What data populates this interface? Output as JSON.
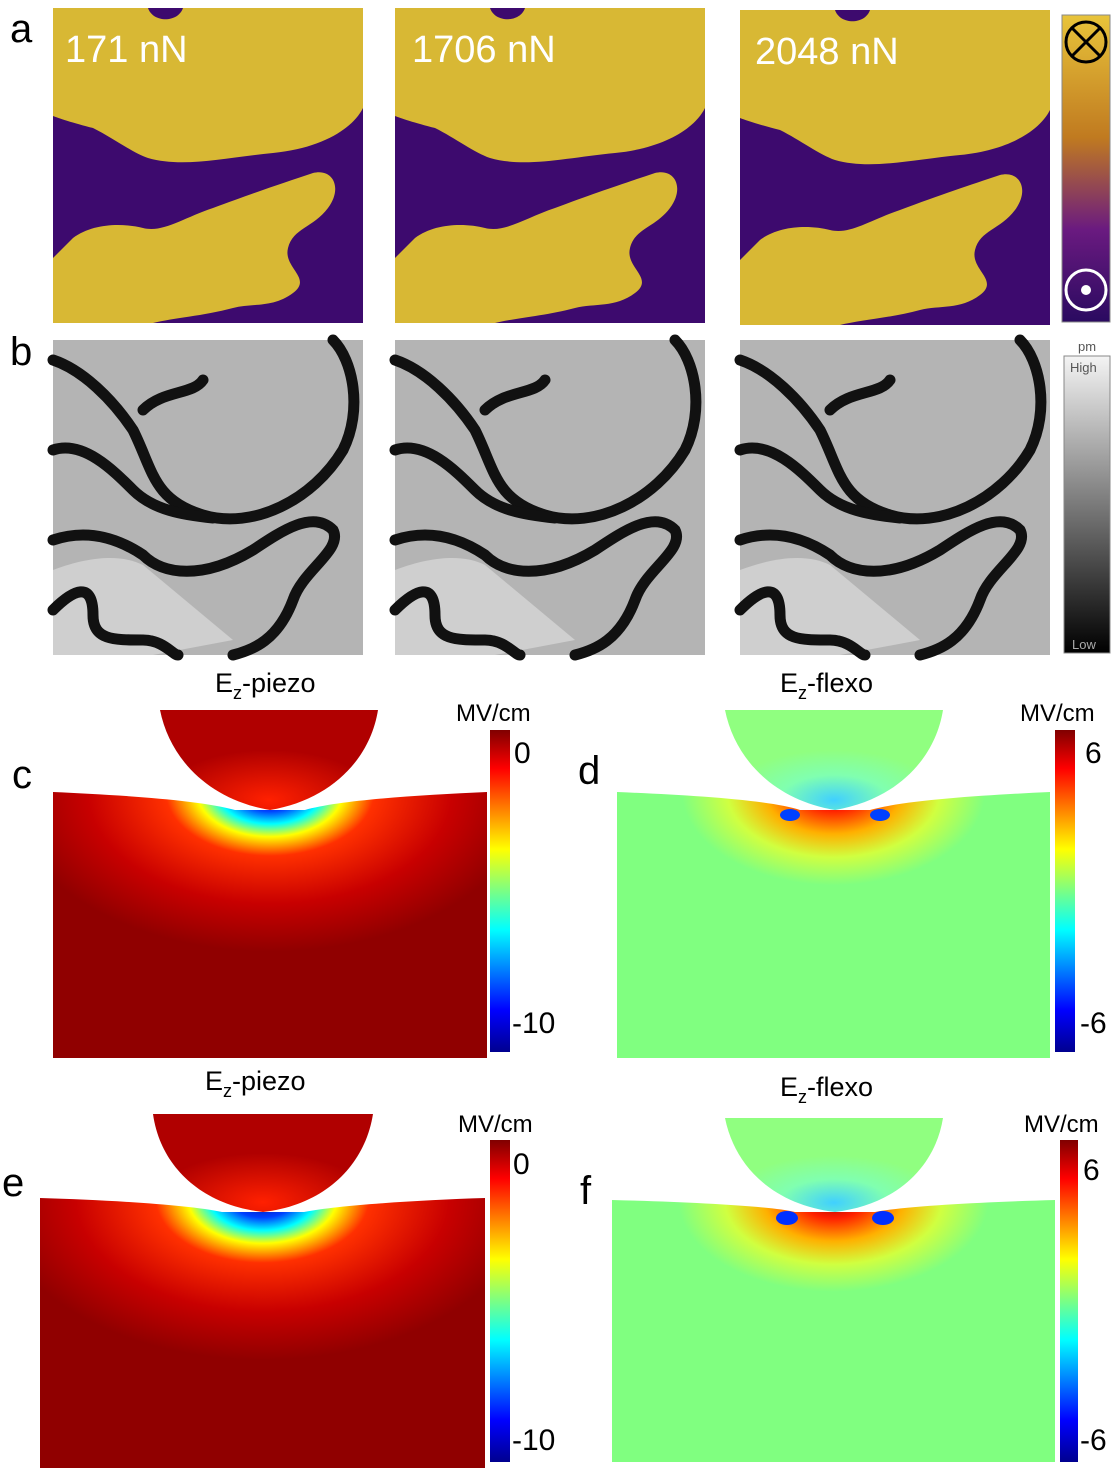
{
  "panel_a": {
    "letter": "a",
    "labels": [
      "171 nN",
      "1706 nN",
      "2048 nN"
    ]
  },
  "panel_b": {
    "letter": "b",
    "colorbar": {
      "unit": "pm",
      "high": "High",
      "low": "Low"
    }
  },
  "panel_c": {
    "letter": "c",
    "title": {
      "symbol": "E",
      "subscript": "z",
      "suffix": "-piezo"
    },
    "colorbar": {
      "unit": "MV/cm",
      "max": 0,
      "min": -10
    }
  },
  "panel_d": {
    "letter": "d",
    "title": {
      "symbol": "E",
      "subscript": "z",
      "suffix": "-flexo"
    },
    "colorbar": {
      "unit": "MV/cm",
      "max": 6,
      "min": -6
    }
  },
  "panel_e": {
    "letter": "e",
    "title": {
      "symbol": "E",
      "subscript": "z",
      "suffix": "-piezo"
    },
    "colorbar": {
      "unit": "MV/cm",
      "max": 0,
      "min": -10
    }
  },
  "panel_f": {
    "letter": "f",
    "title": {
      "symbol": "E",
      "subscript": "z",
      "suffix": "-flexo"
    },
    "colorbar": {
      "unit": "MV/cm",
      "max": 6,
      "min": -6
    }
  }
}
